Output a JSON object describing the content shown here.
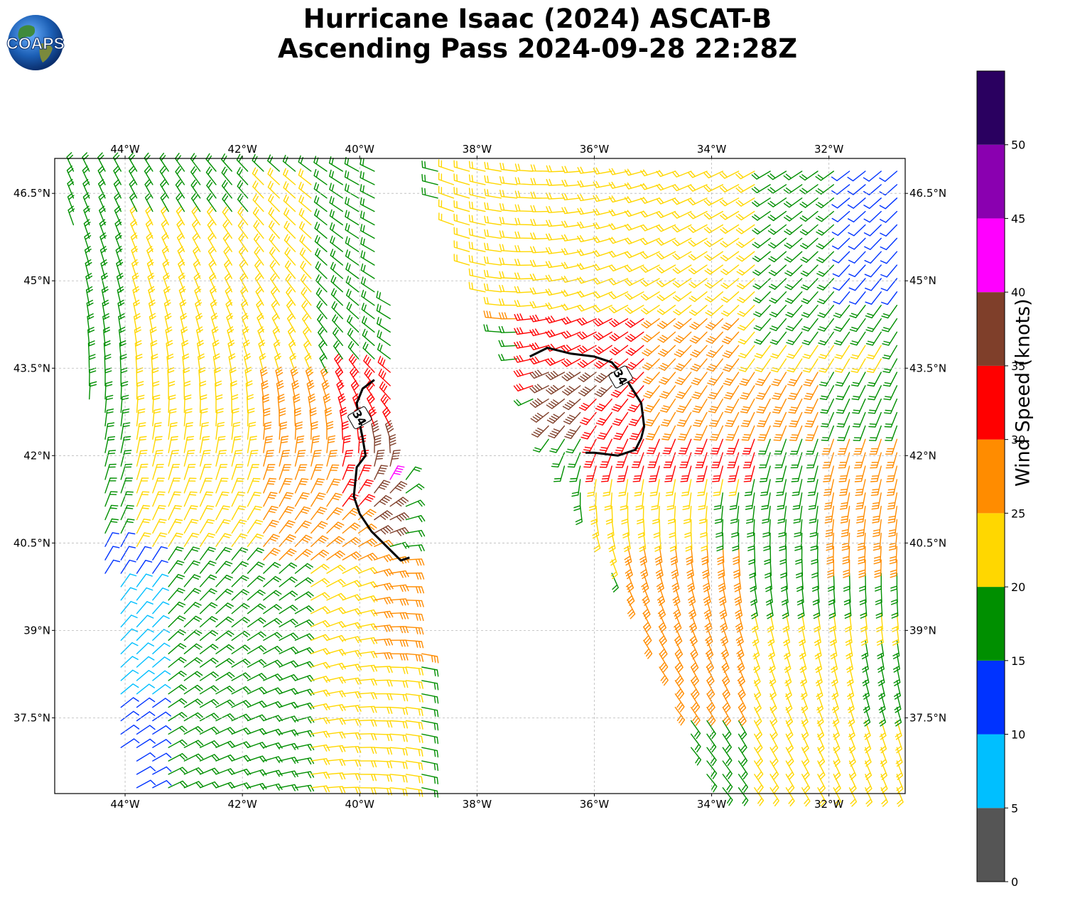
{
  "title": {
    "line1": "Hurricane Isaac (2024) ASCAT-B",
    "line2": "Ascending Pass 2024-09-28 22:28Z"
  },
  "logo": {
    "text": "COAPS",
    "icon": "globe-logo"
  },
  "map": {
    "lon_range": [
      -45.2,
      -30.7
    ],
    "lat_range": [
      36.2,
      47.1
    ],
    "lon_ticks": [
      {
        "value": -44,
        "label": "44°W"
      },
      {
        "value": -42,
        "label": "42°W"
      },
      {
        "value": -40,
        "label": "40°W"
      },
      {
        "value": -38,
        "label": "38°W"
      },
      {
        "value": -36,
        "label": "36°W"
      },
      {
        "value": -34,
        "label": "34°W"
      },
      {
        "value": -32,
        "label": "32°W"
      }
    ],
    "lat_ticks": [
      {
        "value": 46.5,
        "label": "46.5°N"
      },
      {
        "value": 45,
        "label": "45°N"
      },
      {
        "value": 43.5,
        "label": "43.5°N"
      },
      {
        "value": 42,
        "label": "42°N"
      },
      {
        "value": 40.5,
        "label": "40.5°N"
      },
      {
        "value": 39,
        "label": "39°N"
      },
      {
        "value": 37.5,
        "label": "37.5°N"
      }
    ],
    "grid": true,
    "swaths": [
      {
        "name": "west-swath",
        "top": [
          [
            -45.0,
            47.0
          ],
          [
            -39.7,
            47.0
          ]
        ],
        "bottom": [
          [
            -44.0,
            36.2
          ],
          [
            -38.7,
            36.2
          ]
        ]
      },
      {
        "name": "east-swath",
        "top": [
          [
            -39.0,
            47.0
          ],
          [
            -30.7,
            47.0
          ]
        ],
        "bottom": [
          [
            -34.0,
            36.2
          ],
          [
            -30.7,
            36.2
          ]
        ]
      }
    ],
    "contours": [
      {
        "label": "34",
        "label_at": [
          -40.0,
          42.65
        ],
        "points": [
          [
            -39.75,
            43.3
          ],
          [
            -39.95,
            43.15
          ],
          [
            -40.05,
            42.9
          ],
          [
            -40.0,
            42.55
          ],
          [
            -39.95,
            42.3
          ],
          [
            -39.9,
            42.0
          ],
          [
            -40.05,
            41.8
          ],
          [
            -40.1,
            41.3
          ],
          [
            -40.0,
            41.0
          ],
          [
            -39.8,
            40.7
          ],
          [
            -39.5,
            40.4
          ],
          [
            -39.3,
            40.2
          ],
          [
            -39.15,
            40.25
          ]
        ]
      },
      {
        "label": "34",
        "label_at": [
          -35.55,
          43.35
        ],
        "points": [
          [
            -37.1,
            43.7
          ],
          [
            -36.8,
            43.85
          ],
          [
            -36.4,
            43.75
          ],
          [
            -36.0,
            43.7
          ],
          [
            -35.7,
            43.6
          ],
          [
            -35.45,
            43.3
          ],
          [
            -35.2,
            42.9
          ],
          [
            -35.15,
            42.5
          ],
          [
            -35.2,
            42.3
          ],
          [
            -35.3,
            42.1
          ],
          [
            -35.6,
            42.0
          ],
          [
            -36.0,
            42.05
          ],
          [
            -36.15,
            42.05
          ]
        ]
      }
    ],
    "regions": [
      {
        "speed": 12,
        "x": [
          -44.4,
          -41.5
        ],
        "y": [
          36.2,
          41.0
        ]
      },
      {
        "speed": 8,
        "x": [
          -44.8,
          -43.2
        ],
        "y": [
          37.8,
          39.8
        ]
      },
      {
        "speed": 17,
        "x": [
          -43.5,
          -41.0
        ],
        "y": [
          36.2,
          40.9
        ]
      },
      {
        "speed": 18,
        "x": [
          -45.2,
          -43.0
        ],
        "y": [
          40.5,
          46.6
        ]
      },
      {
        "speed": 22,
        "x": [
          -44.0,
          -40.8
        ],
        "y": [
          40.3,
          46.8
        ]
      },
      {
        "speed": 17,
        "x": [
          -44.8,
          -41.8
        ],
        "y": [
          46.0,
          47.1
        ]
      },
      {
        "speed": 22,
        "x": [
          -41.0,
          -39.0
        ],
        "y": [
          36.2,
          40.0
        ]
      },
      {
        "speed": 27,
        "x": [
          -41.8,
          -39.6
        ],
        "y": [
          40.2,
          43.3
        ]
      },
      {
        "speed": 32,
        "x": [
          -40.5,
          -39.3
        ],
        "y": [
          41.0,
          43.6
        ]
      },
      {
        "speed": 37,
        "x": [
          -39.9,
          -39.4
        ],
        "y": [
          40.6,
          42.5
        ]
      },
      {
        "speed": 42,
        "x": [
          -39.55,
          -39.45
        ],
        "y": [
          41.5,
          41.7
        ]
      },
      {
        "speed": 27,
        "x": [
          -40.0,
          -38.9
        ],
        "y": [
          38.5,
          40.3
        ]
      },
      {
        "speed": 27,
        "x": [
          -37.8,
          -35.2
        ],
        "y": [
          44.3,
          45.4
        ]
      },
      {
        "speed": 32,
        "x": [
          -37.1,
          -35.0
        ],
        "y": [
          43.1,
          44.4
        ]
      },
      {
        "speed": 37,
        "x": [
          -36.9,
          -35.6
        ],
        "y": [
          42.3,
          43.6
        ]
      },
      {
        "speed": 32,
        "x": [
          -36.0,
          -33.0
        ],
        "y": [
          41.8,
          43.0
        ]
      },
      {
        "speed": 22,
        "x": [
          -38.5,
          -33.0
        ],
        "y": [
          44.5,
          47.1
        ]
      },
      {
        "speed": 27,
        "x": [
          -35.0,
          -32.0
        ],
        "y": [
          42.5,
          44.5
        ]
      },
      {
        "speed": 22,
        "x": [
          -33.5,
          -31.0
        ],
        "y": [
          43.5,
          45.5
        ]
      },
      {
        "speed": 17,
        "x": [
          -33.0,
          -30.7
        ],
        "y": [
          44.0,
          47.1
        ]
      },
      {
        "speed": 12,
        "x": [
          -31.8,
          -30.7
        ],
        "y": [
          44.8,
          47.1
        ]
      },
      {
        "speed": 22,
        "x": [
          -36.0,
          -33.5
        ],
        "y": [
          40.0,
          41.8
        ]
      },
      {
        "speed": 17,
        "x": [
          -34.0,
          -31.5
        ],
        "y": [
          39.5,
          41.5
        ]
      },
      {
        "speed": 27,
        "x": [
          -35.5,
          -33.5
        ],
        "y": [
          37.5,
          40.5
        ]
      },
      {
        "speed": 22,
        "x": [
          -33.5,
          -30.7
        ],
        "y": [
          36.2,
          39.5
        ]
      },
      {
        "speed": 27,
        "x": [
          -32.0,
          -30.7
        ],
        "y": [
          40.2,
          42.5
        ]
      },
      {
        "speed": 17,
        "x": [
          -31.5,
          -30.7
        ],
        "y": [
          37.5,
          39.0
        ]
      }
    ]
  },
  "colorbar": {
    "label": "Wind Speed (knots)",
    "bins": [
      {
        "from": 0,
        "to": 5,
        "color": "#555555"
      },
      {
        "from": 5,
        "to": 10,
        "color": "#00bfff"
      },
      {
        "from": 10,
        "to": 15,
        "color": "#0033ff"
      },
      {
        "from": 15,
        "to": 20,
        "color": "#008f00"
      },
      {
        "from": 20,
        "to": 25,
        "color": "#ffd700"
      },
      {
        "from": 25,
        "to": 30,
        "color": "#ff8c00"
      },
      {
        "from": 30,
        "to": 35,
        "color": "#ff0000"
      },
      {
        "from": 35,
        "to": 40,
        "color": "#7f3f2a"
      },
      {
        "from": 40,
        "to": 45,
        "color": "#ff00ff"
      },
      {
        "from": 45,
        "to": 50,
        "color": "#8a00b0"
      },
      {
        "from": 50,
        "to": 55,
        "color": "#2a0060"
      }
    ],
    "tick_labels": [
      "0",
      "5",
      "10",
      "15",
      "20",
      "25",
      "30",
      "35",
      "40",
      "45",
      "50"
    ]
  }
}
